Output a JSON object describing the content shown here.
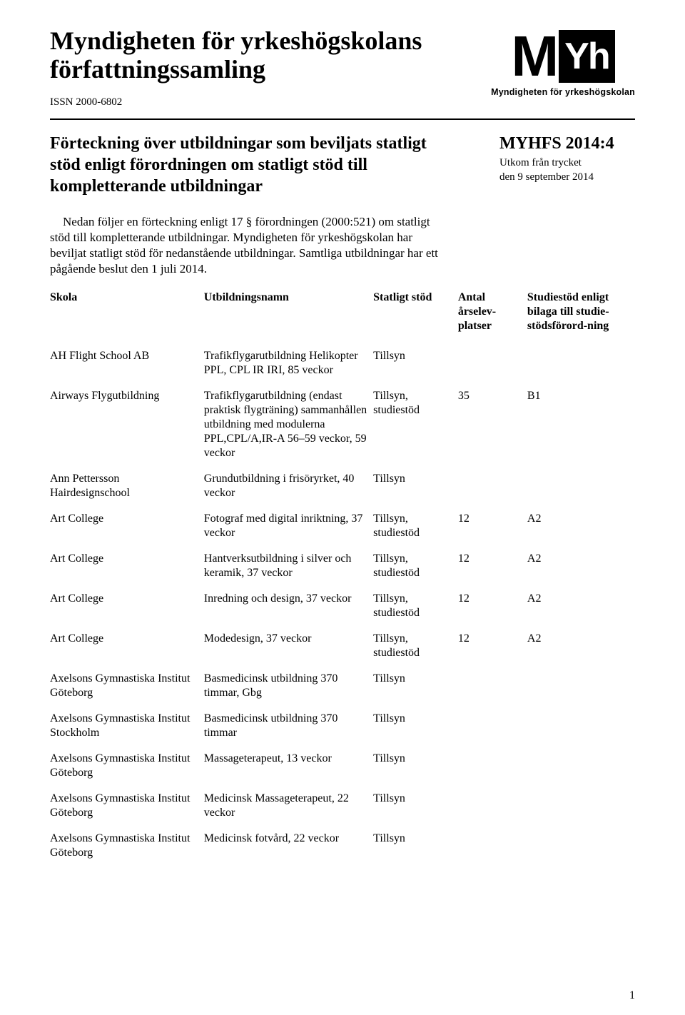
{
  "header": {
    "title_line1": "Myndigheten för yrkeshögskolans",
    "title_line2": "författningssamling",
    "issn": "ISSN 2000-6802",
    "logo_m": "M",
    "logo_yh": "Yh",
    "logo_caption": "Myndigheten för yrkeshögskolan"
  },
  "decree": {
    "title": "Förteckning över utbildningar som beviljats statligt stöd enligt förordningen om statligt stöd till kompletterande utbildningar",
    "pub_code": "MYHFS 2014:4",
    "pub_note_line1": "Utkom från trycket",
    "pub_note_line2": "den 9 september 2014"
  },
  "intro": "Nedan följer en förteckning enligt 17 § förordningen (2000:521) om statligt stöd till kompletterande utbildningar. Myndigheten för yrkeshögskolan har beviljat statligt stöd för nedanstående utbildningar. Samtliga utbildningar har ett pågående beslut den 1 juli 2014.",
  "columns": {
    "skola": "Skola",
    "utbildningsnamn": "Utbildningsnamn",
    "statligt_stod": "Statligt stöd",
    "antal": "Antal årselev-platser",
    "studiestod": "Studiestöd enligt bilaga till studie-stödsförord-ning"
  },
  "rows": [
    {
      "skola": "AH Flight School AB",
      "utb": "Trafikflygarutbildning Helikopter PPL, CPL IR IRI, 85 veckor",
      "stod": "Tillsyn",
      "antal": "",
      "studie": ""
    },
    {
      "skola": "Airways Flygutbildning",
      "utb": "Trafikflygarutbildning (endast praktisk flygträning) sammanhållen utbildning med modulerna PPL,CPL/A,IR-A 56–59 veckor, 59 veckor",
      "stod": "Tillsyn, studiestöd",
      "antal": "35",
      "studie": "B1"
    },
    {
      "skola": "Ann Pettersson Hairdesignschool",
      "utb": "Grundutbildning i frisöryrket, 40 veckor",
      "stod": "Tillsyn",
      "antal": "",
      "studie": ""
    },
    {
      "skola": "Art College",
      "utb": "Fotograf med digital inriktning, 37 veckor",
      "stod": "Tillsyn, studiestöd",
      "antal": "12",
      "studie": "A2"
    },
    {
      "skola": "Art College",
      "utb": "Hantverksutbildning i silver och keramik, 37 veckor",
      "stod": "Tillsyn, studiestöd",
      "antal": "12",
      "studie": "A2"
    },
    {
      "skola": "Art College",
      "utb": "Inredning och design, 37 veckor",
      "stod": "Tillsyn, studiestöd",
      "antal": "12",
      "studie": "A2"
    },
    {
      "skola": "Art College",
      "utb": "Modedesign, 37 veckor",
      "stod": "Tillsyn, studiestöd",
      "antal": "12",
      "studie": "A2"
    },
    {
      "skola": "Axelsons Gymnastiska Institut Göteborg",
      "utb": "Basmedicinsk utbildning 370 timmar, Gbg",
      "stod": "Tillsyn",
      "antal": "",
      "studie": ""
    },
    {
      "skola": "Axelsons Gymnastiska Institut Stockholm",
      "utb": "Basmedicinsk utbildning 370 timmar",
      "stod": "Tillsyn",
      "antal": "",
      "studie": ""
    },
    {
      "skola": "Axelsons Gymnastiska Institut Göteborg",
      "utb": "Massageterapeut, 13 veckor",
      "stod": "Tillsyn",
      "antal": "",
      "studie": ""
    },
    {
      "skola": "Axelsons Gymnastiska Institut Göteborg",
      "utb": "Medicinsk Massageterapeut, 22 veckor",
      "stod": "Tillsyn",
      "antal": "",
      "studie": ""
    },
    {
      "skola": "Axelsons Gymnastiska Institut Göteborg",
      "utb": "Medicinsk fotvård, 22 veckor",
      "stod": "Tillsyn",
      "antal": "",
      "studie": ""
    }
  ],
  "page_number": "1"
}
